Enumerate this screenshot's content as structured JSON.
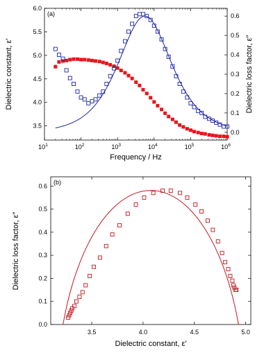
{
  "chart_data": [
    {
      "type": "scatter",
      "panel_label": "(a)",
      "xlabel": "Frequency / Hz",
      "ylabel_left": "Dielectric constant, ε′",
      "ylabel_right": "Dielectric loss factor, ε″",
      "x_scale": "log",
      "xlim": [
        10,
        1000000
      ],
      "ylim_left": [
        3.2,
        6.0
      ],
      "ylim_right": [
        -0.04,
        0.64
      ],
      "x_ticks": [
        10,
        100,
        1000,
        10000,
        100000,
        1000000
      ],
      "x_tick_labels": [
        {
          "base": "10",
          "exp": "1"
        },
        {
          "base": "10",
          "exp": "2"
        },
        {
          "base": "10",
          "exp": "3"
        },
        {
          "base": "10",
          "exp": "4"
        },
        {
          "base": "10",
          "exp": "5"
        },
        {
          "base": "10",
          "exp": "6"
        }
      ],
      "y_ticks_left": [
        "3.5",
        "4.0",
        "4.5",
        "5.0",
        "5.5",
        "6.0"
      ],
      "y_ticks_right": [
        "0.0",
        "0.1",
        "0.2",
        "0.3",
        "0.4",
        "0.5",
        "0.6"
      ],
      "series": [
        {
          "style": "filled-square",
          "axis": "left",
          "color": "#e8141b",
          "x": [
            20,
            25,
            32,
            40,
            50,
            63,
            80,
            100,
            125,
            160,
            200,
            250,
            320,
            400,
            500,
            630,
            800,
            1000,
            1250,
            1600,
            2000,
            2500,
            3200,
            4000,
            5000,
            6300,
            8000,
            10000,
            12500,
            16000,
            20000,
            25000,
            32000,
            40000,
            50000,
            63000,
            80000,
            100000,
            125000,
            160000,
            200000,
            250000,
            320000,
            400000,
            500000,
            630000,
            800000,
            1000000
          ],
          "y": [
            4.76,
            4.86,
            4.88,
            4.89,
            4.91,
            4.92,
            4.92,
            4.91,
            4.91,
            4.9,
            4.89,
            4.88,
            4.87,
            4.85,
            4.83,
            4.8,
            4.77,
            4.73,
            4.68,
            4.63,
            4.57,
            4.51,
            4.43,
            4.36,
            4.27,
            4.19,
            4.1,
            4.01,
            3.93,
            3.85,
            3.77,
            3.7,
            3.64,
            3.58,
            3.52,
            3.48,
            3.44,
            3.41,
            3.38,
            3.36,
            3.34,
            3.33,
            3.31,
            3.3,
            3.29,
            3.28,
            3.28,
            3.27
          ]
        },
        {
          "style": "open-square",
          "axis": "right",
          "color": "#1b23a8",
          "x": [
            20,
            25,
            32,
            40,
            50,
            63,
            80,
            100,
            125,
            160,
            200,
            250,
            320,
            400,
            500,
            630,
            800,
            1000,
            1250,
            1600,
            2000,
            2500,
            3200,
            4000,
            5000,
            6300,
            8000,
            10000,
            12500,
            16000,
            20000,
            25000,
            32000,
            40000,
            50000,
            63000,
            80000,
            100000,
            125000,
            160000,
            200000,
            250000,
            320000,
            400000,
            500000,
            630000,
            800000,
            1000000
          ],
          "y": [
            0.43,
            0.4,
            0.38,
            0.32,
            0.28,
            0.25,
            0.21,
            0.18,
            0.17,
            0.15,
            0.16,
            0.17,
            0.19,
            0.21,
            0.25,
            0.29,
            0.33,
            0.37,
            0.42,
            0.47,
            0.52,
            0.56,
            0.6,
            0.61,
            0.61,
            0.6,
            0.58,
            0.55,
            0.52,
            0.48,
            0.43,
            0.39,
            0.34,
            0.29,
            0.25,
            0.21,
            0.18,
            0.15,
            0.13,
            0.11,
            0.1,
            0.08,
            0.07,
            0.06,
            0.05,
            0.04,
            0.03,
            0.03
          ]
        },
        {
          "style": "line",
          "axis": "right",
          "color": "#1b23a8",
          "peak_frequency": 5600,
          "peak_value": 0.6,
          "alpha": 0.76,
          "x_range": [
            20,
            1000000
          ]
        }
      ]
    },
    {
      "type": "scatter",
      "panel_label": "(b)",
      "xlabel": "Dielectric constant, ε′",
      "ylabel": "Dielectric loss factor, ε″",
      "xlim": [
        3.1,
        5.05
      ],
      "ylim": [
        0.0,
        0.64
      ],
      "x_ticks": [
        "3.5",
        "4.0",
        "4.5",
        "5.0"
      ],
      "y_ticks": [
        "0.0",
        "0.1",
        "0.2",
        "0.3",
        "0.4",
        "0.5",
        "0.6"
      ],
      "series": [
        {
          "style": "open-square",
          "color": "#c4161c",
          "x": [
            3.27,
            3.28,
            3.29,
            3.3,
            3.31,
            3.33,
            3.35,
            3.38,
            3.41,
            3.44,
            3.48,
            3.52,
            3.58,
            3.64,
            3.7,
            3.77,
            3.85,
            3.93,
            4.01,
            4.1,
            4.19,
            4.27,
            4.36,
            4.43,
            4.51,
            4.57,
            4.63,
            4.68,
            4.73,
            4.77,
            4.8,
            4.83,
            4.85,
            4.87,
            4.88,
            4.89,
            4.9,
            4.91
          ],
          "y": [
            0.03,
            0.04,
            0.05,
            0.06,
            0.07,
            0.08,
            0.1,
            0.12,
            0.14,
            0.17,
            0.21,
            0.25,
            0.29,
            0.34,
            0.39,
            0.43,
            0.48,
            0.52,
            0.55,
            0.57,
            0.58,
            0.58,
            0.57,
            0.55,
            0.52,
            0.49,
            0.45,
            0.41,
            0.36,
            0.31,
            0.27,
            0.24,
            0.21,
            0.19,
            0.17,
            0.16,
            0.15,
            0.15
          ]
        },
        {
          "style": "line",
          "color": "#c4161c",
          "eps_inf": 3.22,
          "eps_s": 4.93,
          "alpha": 0.76
        }
      ]
    }
  ]
}
